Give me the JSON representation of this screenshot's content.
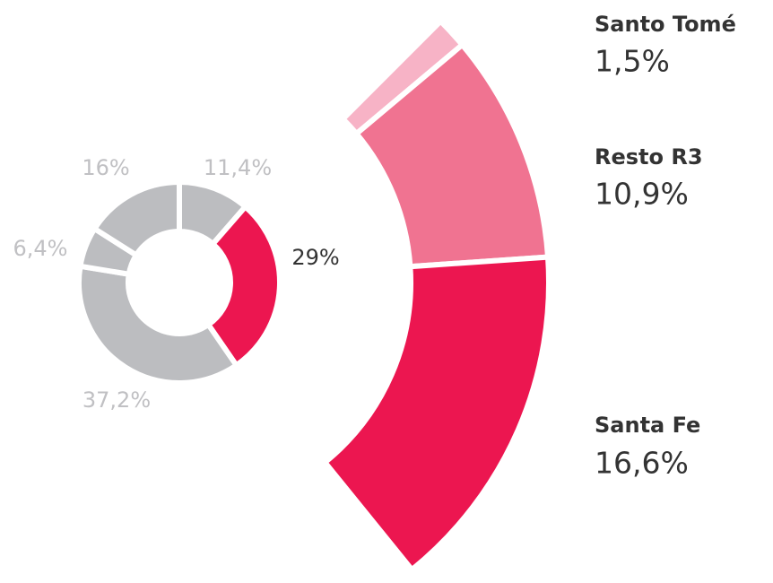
{
  "chart_data": [
    {
      "type": "donut",
      "values": [
        11.4,
        29,
        37.2,
        6.4,
        16
      ],
      "value_labels": [
        "11,4%",
        "29%",
        "37,2%",
        "6,4%",
        "16%"
      ],
      "colors": [
        "#bcbdc0",
        "#ec1650",
        "#bcbdc0",
        "#bcbdc0",
        "#bcbdc0"
      ]
    },
    {
      "type": "donut-breakdown",
      "categories": [
        "Santo Tomé",
        "Resto R3",
        "Santa Fe"
      ],
      "values": [
        1.5,
        10.9,
        16.6
      ],
      "value_labels": [
        "1,5%",
        "10,9%",
        "16,6%"
      ],
      "colors": [
        "#f7b3c6",
        "#f07391",
        "#ec1650"
      ]
    }
  ]
}
